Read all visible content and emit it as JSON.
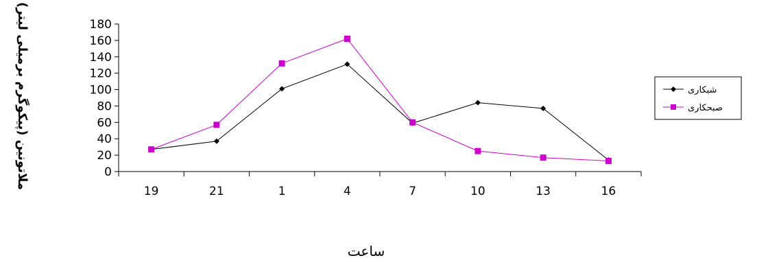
{
  "chart_data": {
    "type": "line",
    "categories": [
      "19",
      "21",
      "1",
      "4",
      "7",
      "10",
      "13",
      "16"
    ],
    "xlabel": "ساعت",
    "ylabel": "ملاتونین (پیکوگرم برمیلی لیتر)",
    "ylim": [
      0,
      180
    ],
    "yticks": [
      0,
      20,
      40,
      60,
      80,
      100,
      120,
      140,
      160,
      180
    ],
    "grid": false,
    "legend_position": "right",
    "series": [
      {
        "name": "شبکاری",
        "color": "#000000",
        "marker": "diamond",
        "values": [
          27,
          37,
          101,
          131,
          59,
          84,
          77,
          14
        ]
      },
      {
        "name": "صبحکاری",
        "color": "#cc00cc",
        "marker": "square",
        "values": [
          27,
          57,
          132,
          162,
          60,
          25,
          17,
          13
        ]
      }
    ]
  }
}
